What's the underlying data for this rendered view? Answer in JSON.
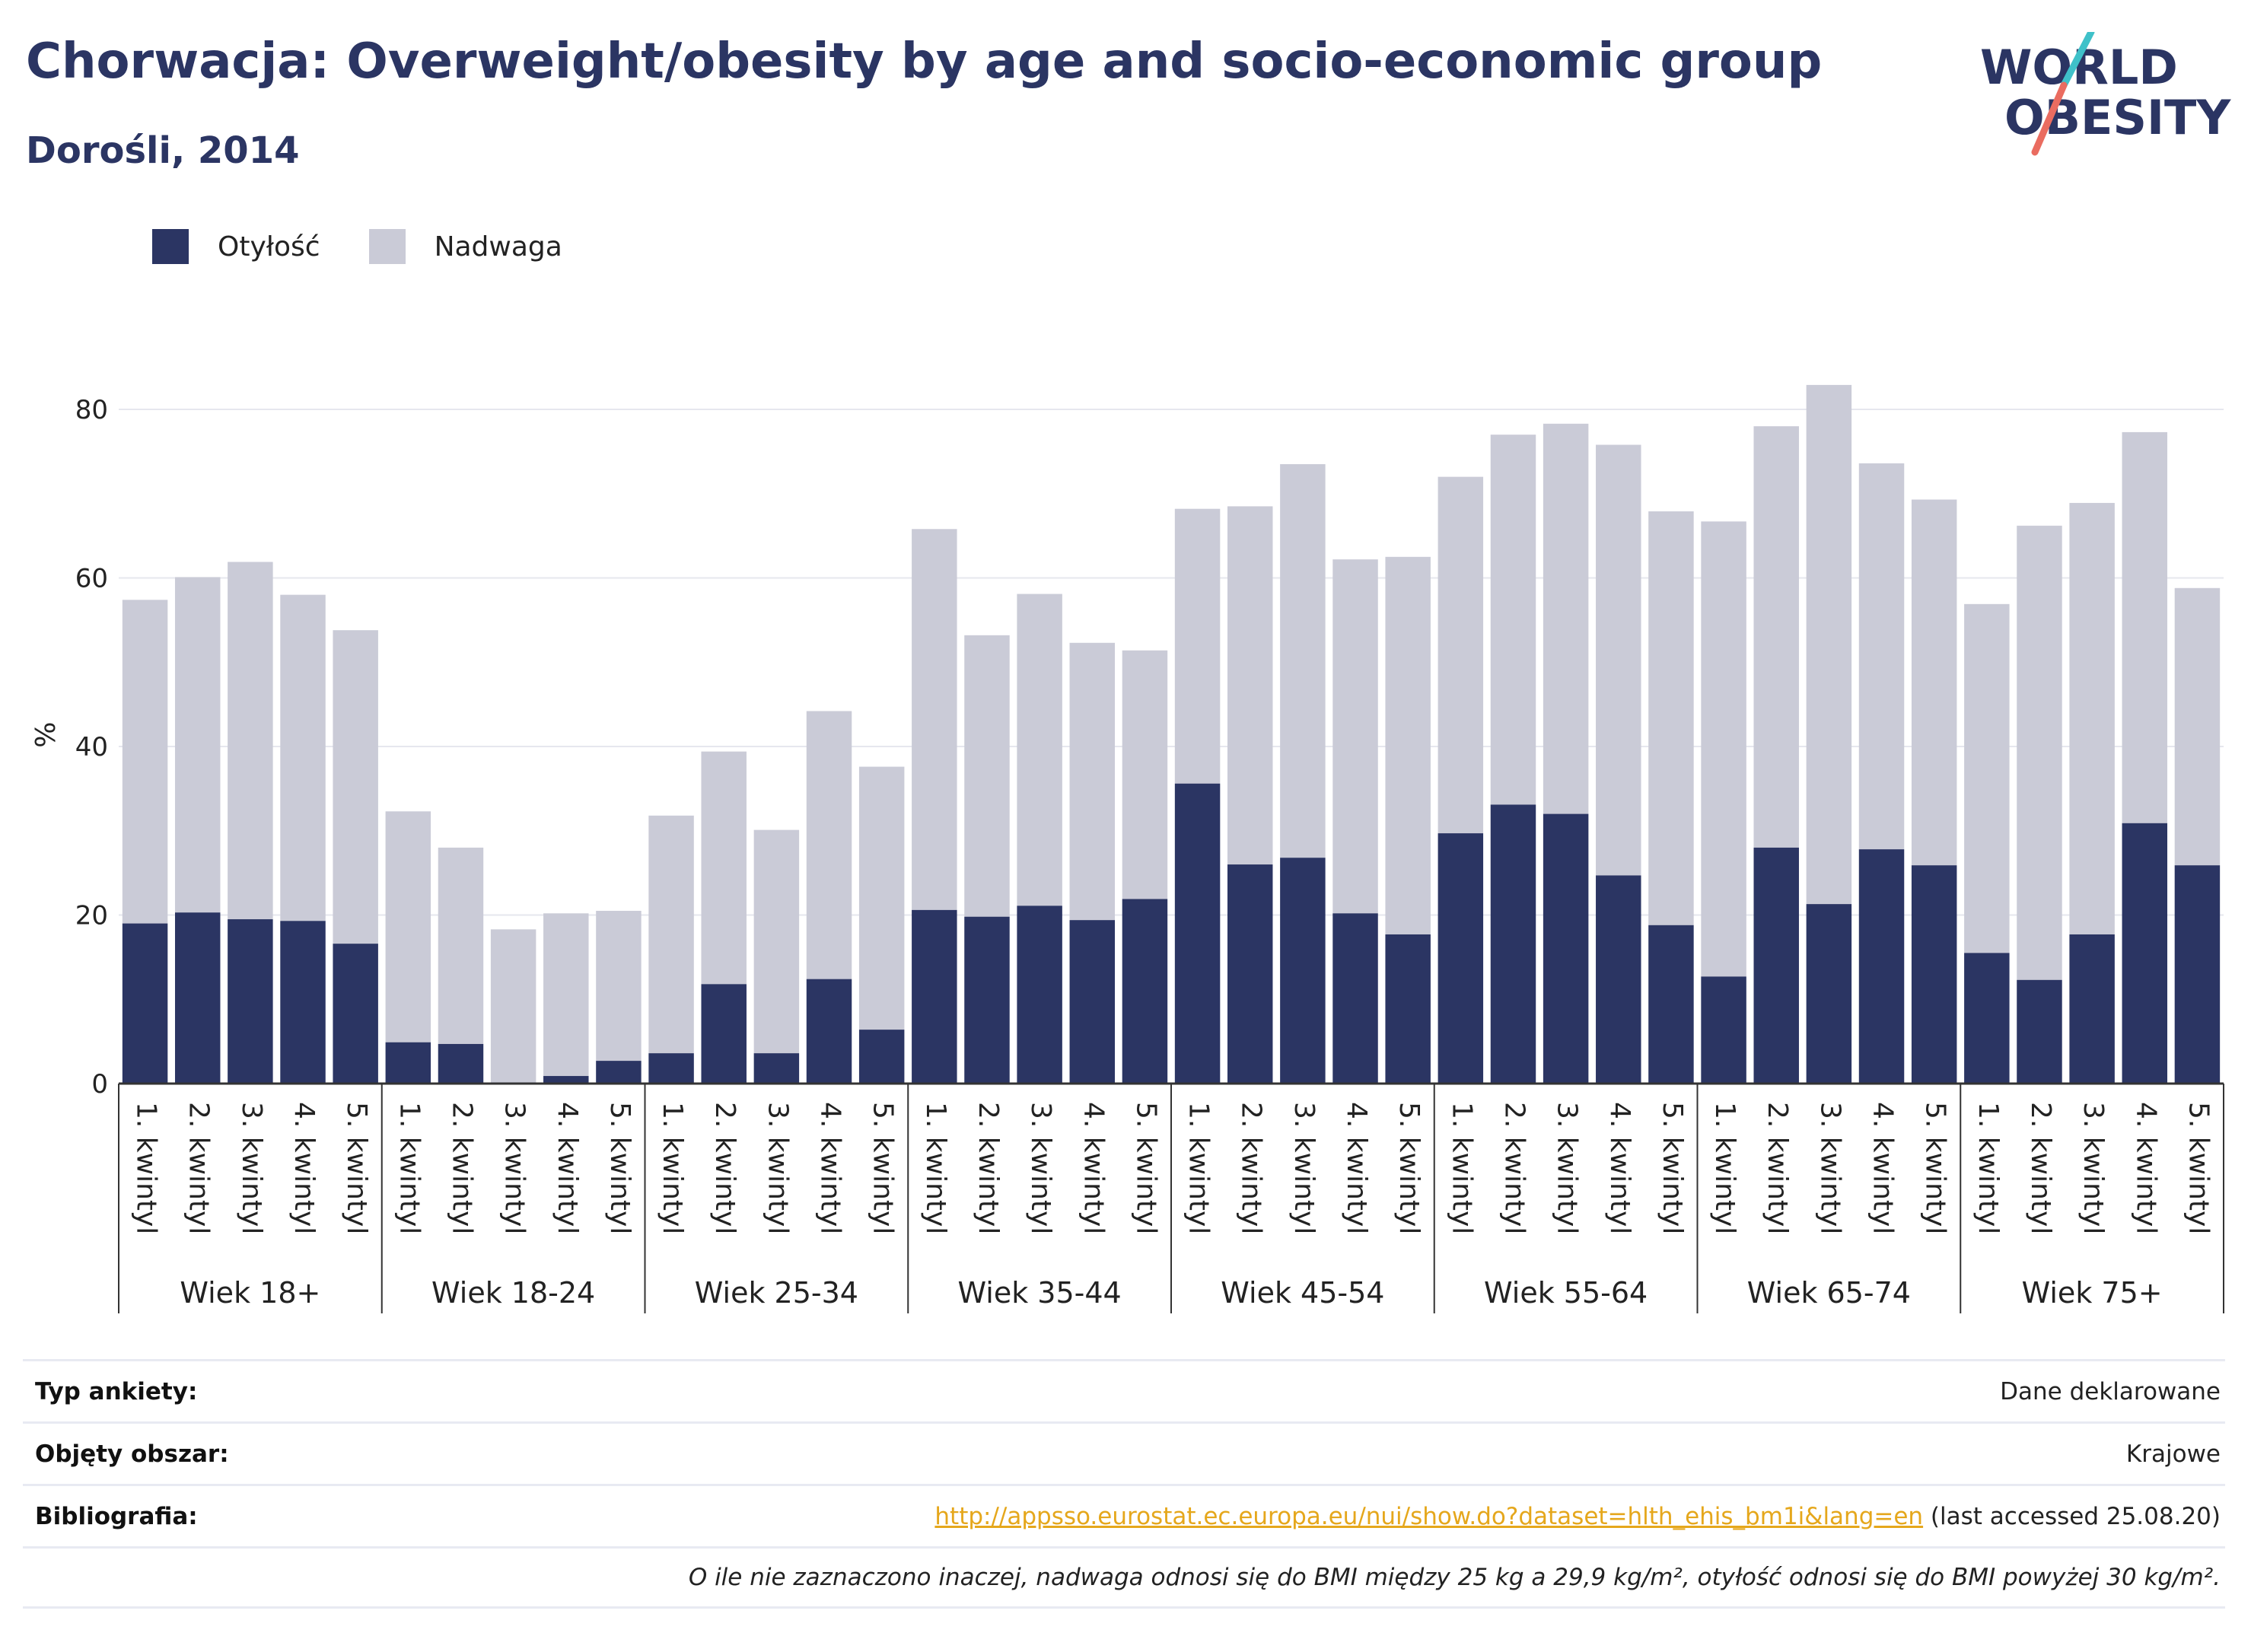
{
  "header": {
    "title": "Chorwacja: Overweight/obesity by age and socio-economic group",
    "subtitle": "Dorośli, 2014"
  },
  "logo": {
    "line1": "WORLD",
    "line2": "OBESITY"
  },
  "legend": [
    {
      "label": "Otyłość",
      "color": "#2b3563"
    },
    {
      "label": "Nadwaga",
      "color": "#cacbd7"
    }
  ],
  "chart_data": {
    "type": "bar",
    "stacked": true,
    "ylabel": "%",
    "ylim": [
      0,
      90
    ],
    "yticks": [
      0,
      20,
      40,
      60,
      80
    ],
    "grid": true,
    "legend_position": "top-left",
    "categories": [
      "1. kwintyl",
      "2. kwintyl",
      "3. kwintyl",
      "4. kwintyl",
      "5. kwintyl"
    ],
    "groups": [
      "Wiek 18+",
      "Wiek 18-24",
      "Wiek 25-34",
      "Wiek 35-44",
      "Wiek 45-54",
      "Wiek 55-64",
      "Wiek 65-74",
      "Wiek 75+"
    ],
    "series": [
      {
        "name": "Otyłość",
        "color": "#2b3563",
        "values": [
          [
            19.0,
            20.3,
            19.5,
            19.3,
            16.6
          ],
          [
            4.9,
            4.7,
            0,
            0.9,
            2.7
          ],
          [
            3.6,
            11.8,
            3.6,
            12.4,
            6.4
          ],
          [
            20.6,
            19.8,
            21.1,
            19.4,
            21.9
          ],
          [
            35.6,
            26.0,
            26.8,
            20.2,
            17.7
          ],
          [
            29.7,
            33.1,
            32.0,
            24.7,
            18.8
          ],
          [
            12.7,
            28.0,
            21.3,
            27.8,
            25.9
          ],
          [
            15.5,
            12.3,
            17.7,
            30.9,
            25.9
          ]
        ]
      },
      {
        "name": "Nadwaga",
        "color": "#cacbd7",
        "values": [
          [
            38.4,
            39.8,
            42.4,
            38.7,
            37.2
          ],
          [
            27.4,
            23.3,
            18.3,
            19.3,
            17.8
          ],
          [
            28.2,
            27.6,
            26.5,
            31.8,
            31.2
          ],
          [
            45.2,
            33.4,
            37.0,
            32.9,
            29.5
          ],
          [
            32.6,
            42.5,
            46.7,
            42.0,
            44.8
          ],
          [
            42.3,
            43.9,
            46.3,
            51.1,
            49.1
          ],
          [
            54.0,
            50.0,
            61.6,
            45.8,
            43.4
          ],
          [
            41.4,
            53.9,
            51.2,
            46.4,
            32.9
          ]
        ]
      }
    ]
  },
  "info": {
    "survey_label": "Typ ankiety:",
    "survey_value": "Dane deklarowane",
    "area_label": "Objęty obszar:",
    "area_value": "Krajowe",
    "biblio_label": "Bibliografia:",
    "biblio_link": "http://appsso.eurostat.ec.europa.eu/nui/show.do?dataset=hlth_ehis_bm1i&lang=en",
    "biblio_suffix": " (last accessed 25.08.20)",
    "note": "O ile nie zaznaczono inaczej, nadwaga odnosi się do BMI między 25 kg a 29,9 kg/m², otyłość odnosi się do BMI powyżej 30 kg/m²."
  }
}
